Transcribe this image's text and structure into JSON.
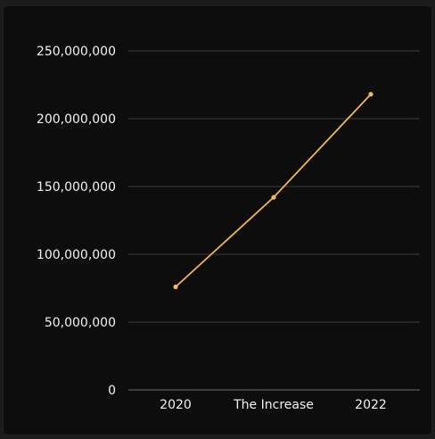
{
  "chart_data": {
    "type": "line",
    "categories": [
      "2020",
      "The Increase",
      "2022"
    ],
    "series": [
      {
        "values": [
          76000000,
          142000000,
          218000000
        ]
      }
    ],
    "y_ticks": [
      "0",
      "50,000,000",
      "100,000,000",
      "150,000,000",
      "200,000,000",
      "250,000,000"
    ],
    "ylim": [
      0,
      250000000
    ],
    "grid": true,
    "legend": "none",
    "colors": {
      "line": "#f5b55a",
      "grid": "#3a3a3a",
      "text": "#f2f2f2",
      "background": "#0d0d0d"
    }
  }
}
